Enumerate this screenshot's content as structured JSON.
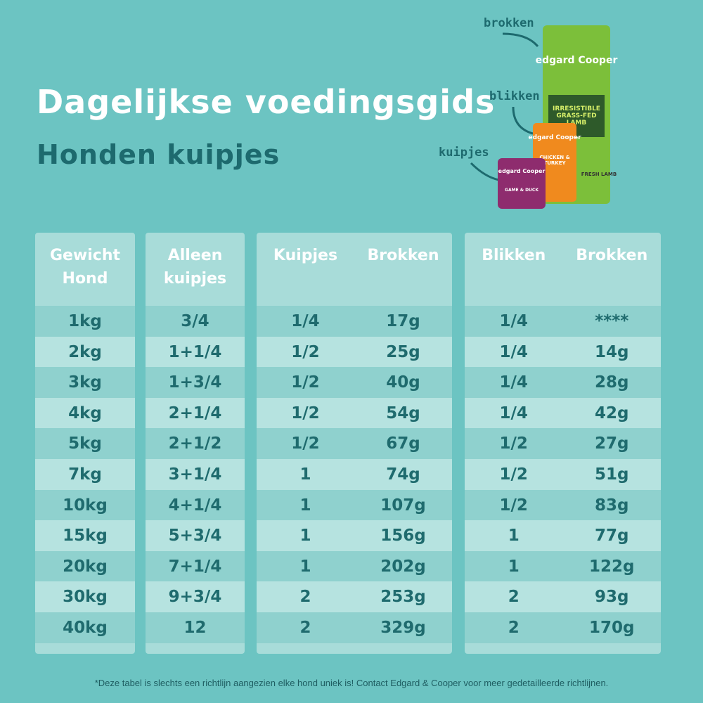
{
  "header": {
    "title": "Dagelijkse voedingsgids",
    "subtitle": "Honden kuipjes"
  },
  "product": {
    "labels": [
      "brokken",
      "blikken",
      "kuipjes"
    ],
    "bag_brand": "edgard Cooper",
    "bag_product": "IRRESISTIBLE GRASS-FED LAMB",
    "bag_badge": "FRESH LAMB",
    "can_brand": "edgard Cooper",
    "can_product": "CHICKEN & TURKEY",
    "tray_brand": "edgard Cooper",
    "tray_product": "GAME & DUCK"
  },
  "tables": [
    {
      "headers": [
        "Gewicht Hond"
      ],
      "rows": [
        [
          "1kg"
        ],
        [
          "2kg"
        ],
        [
          "3kg"
        ],
        [
          "4kg"
        ],
        [
          "5kg"
        ],
        [
          "7kg"
        ],
        [
          "10kg"
        ],
        [
          "15kg"
        ],
        [
          "20kg"
        ],
        [
          "30kg"
        ],
        [
          "40kg"
        ]
      ]
    },
    {
      "headers": [
        "Alleen kuipjes"
      ],
      "rows": [
        [
          "3/4"
        ],
        [
          "1+1/4"
        ],
        [
          "1+3/4"
        ],
        [
          "2+1/4"
        ],
        [
          "2+1/2"
        ],
        [
          "3+1/4"
        ],
        [
          "4+1/4"
        ],
        [
          "5+3/4"
        ],
        [
          "7+1/4"
        ],
        [
          "9+3/4"
        ],
        [
          "12"
        ]
      ]
    },
    {
      "headers": [
        "Kuipjes",
        "Brokken"
      ],
      "rows": [
        [
          "1/4",
          "17g"
        ],
        [
          "1/2",
          "25g"
        ],
        [
          "1/2",
          "40g"
        ],
        [
          "1/2",
          "54g"
        ],
        [
          "1/2",
          "67g"
        ],
        [
          "1",
          "74g"
        ],
        [
          "1",
          "107g"
        ],
        [
          "1",
          "156g"
        ],
        [
          "1",
          "202g"
        ],
        [
          "2",
          "253g"
        ],
        [
          "2",
          "329g"
        ]
      ]
    },
    {
      "headers": [
        "Blikken",
        "Brokken"
      ],
      "rows": [
        [
          "1/4",
          "****"
        ],
        [
          "1/4",
          "14g"
        ],
        [
          "1/4",
          "28g"
        ],
        [
          "1/4",
          "42g"
        ],
        [
          "1/2",
          "27g"
        ],
        [
          "1/2",
          "51g"
        ],
        [
          "1/2",
          "83g"
        ],
        [
          "1",
          "77g"
        ],
        [
          "1",
          "122g"
        ],
        [
          "2",
          "93g"
        ],
        [
          "2",
          "170g"
        ]
      ]
    }
  ],
  "footnote": "*Deze tabel is slechts een richtlijn aangezien elke hond uniek is! Contact Edgard & Cooper voor meer gedetailleerde richtlijnen."
}
